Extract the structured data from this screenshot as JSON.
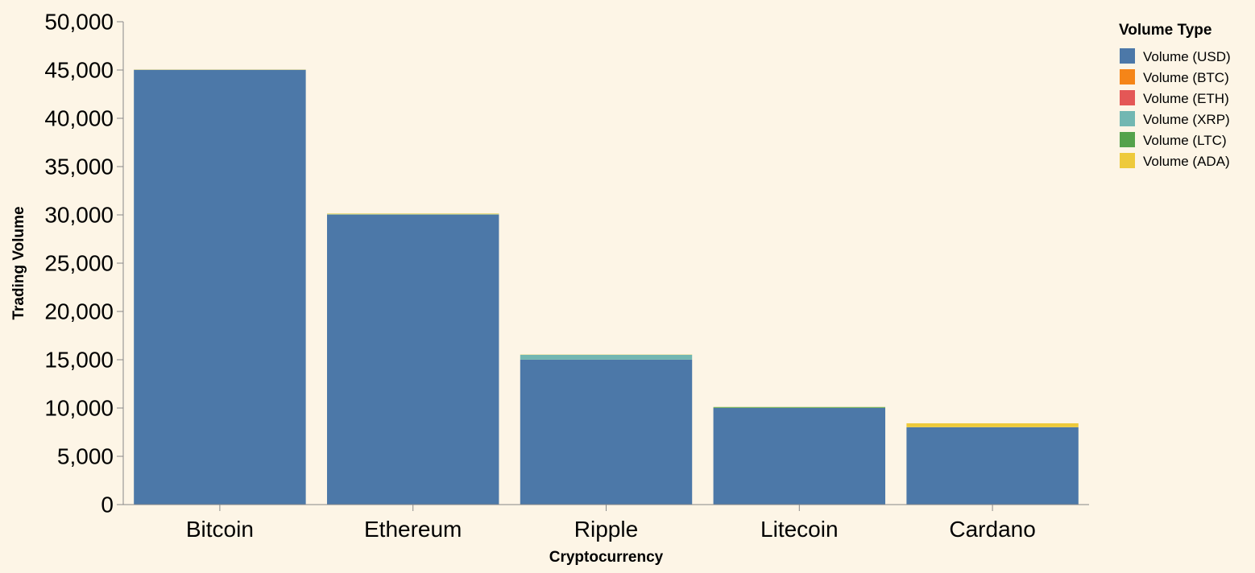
{
  "chart_data": {
    "type": "bar",
    "stacked": true,
    "categories": [
      "Bitcoin",
      "Ethereum",
      "Ripple",
      "Litecoin",
      "Cardano"
    ],
    "series": [
      {
        "name": "Volume (USD)",
        "color": "#4c78a8",
        "values": [
          45000,
          30000,
          15000,
          10000,
          8000
        ]
      },
      {
        "name": "Volume (BTC)",
        "color": "#f58518",
        "values": [
          3,
          5,
          2,
          1,
          1
        ]
      },
      {
        "name": "Volume (ETH)",
        "color": "#e45756",
        "values": [
          10,
          15,
          5,
          3,
          2
        ]
      },
      {
        "name": "Volume (XRP)",
        "color": "#72b7b2",
        "values": [
          20,
          50,
          500,
          15,
          10
        ]
      },
      {
        "name": "Volume (LTC)",
        "color": "#54a24b",
        "values": [
          5,
          30,
          10,
          80,
          5
        ]
      },
      {
        "name": "Volume (ADA)",
        "color": "#eeca3b",
        "values": [
          15,
          40,
          20,
          10,
          400
        ]
      }
    ],
    "xlabel": "Cryptocurrency",
    "ylabel": "Trading Volume",
    "ylim": [
      0,
      50000
    ],
    "yticks": [
      0,
      5000,
      10000,
      15000,
      20000,
      25000,
      30000,
      35000,
      40000,
      45000,
      50000
    ],
    "ytick_labels": [
      "0",
      "5,000",
      "10,000",
      "15,000",
      "20,000",
      "25,000",
      "30,000",
      "35,000",
      "40,000",
      "45,000",
      "50,000"
    ],
    "legend_title": "Volume Type",
    "legend_position": "top-right",
    "grid": false
  }
}
